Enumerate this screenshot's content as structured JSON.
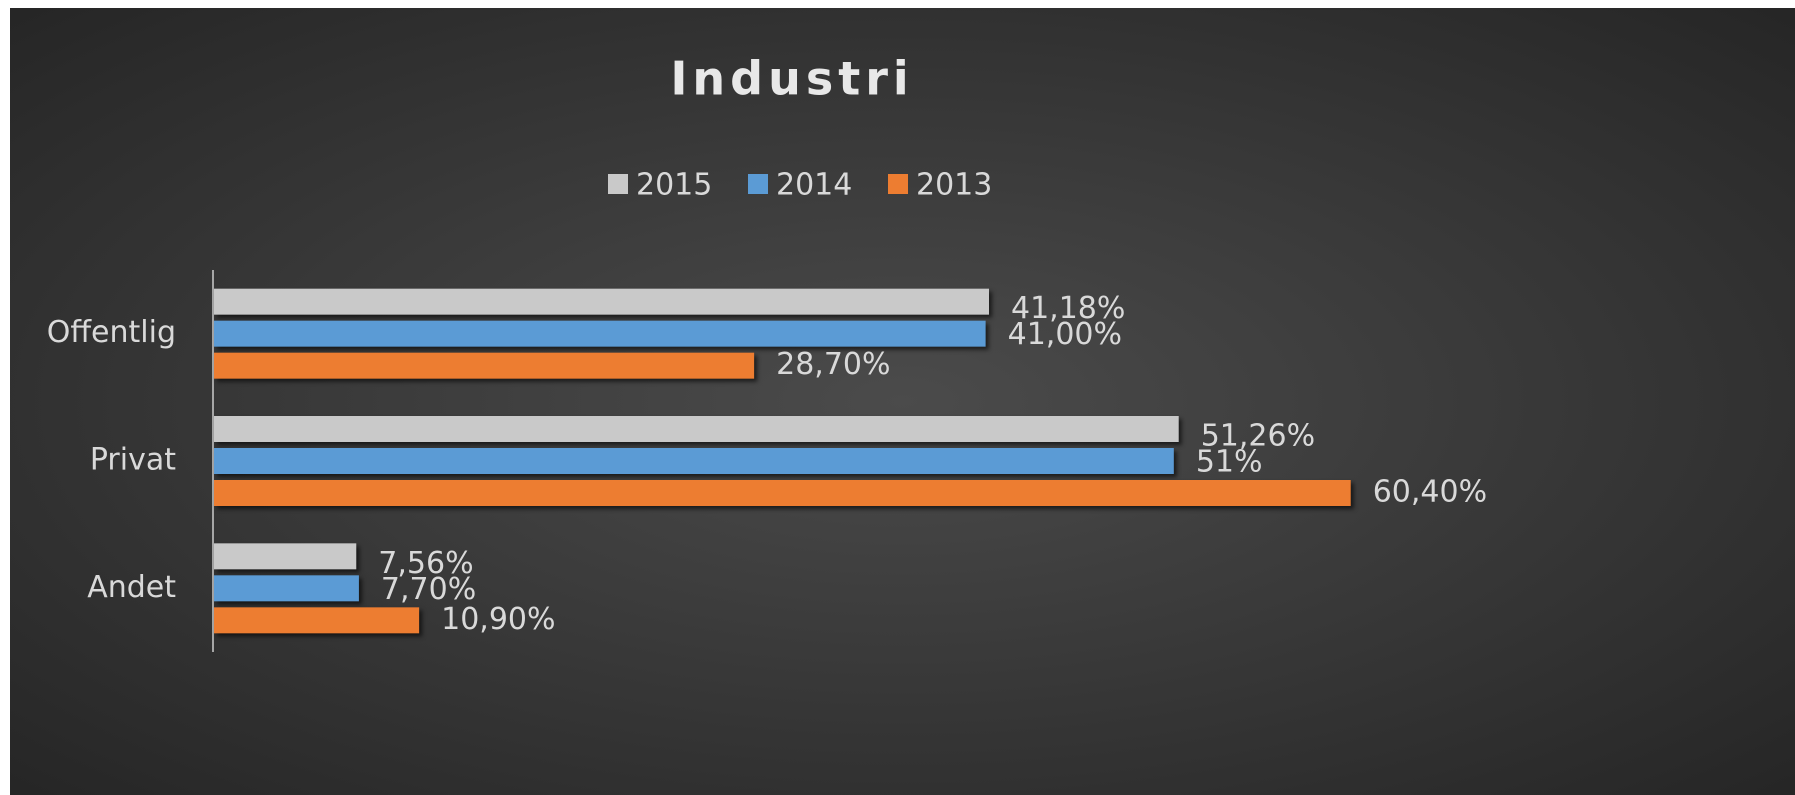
{
  "chart_data": {
    "type": "hbar",
    "title": "Industri",
    "categories": [
      "Offentlig",
      "Privat",
      "Andet"
    ],
    "series": [
      {
        "name": "2015",
        "color": "#c9c9c9",
        "values": [
          41.18,
          51.26,
          7.56
        ],
        "value_labels": [
          "41,18%",
          "51,26%",
          "7,56%"
        ]
      },
      {
        "name": "2014",
        "color": "#5b9bd5",
        "values": [
          41.0,
          51,
          7.7
        ],
        "value_labels": [
          "41,00%",
          "51%",
          "7,70%"
        ]
      },
      {
        "name": "2013",
        "color": "#ed7d31",
        "values": [
          28.7,
          60.4,
          10.9
        ],
        "value_labels": [
          "28,70%",
          "60,40%",
          "10,90%"
        ]
      }
    ],
    "xlim": [
      0,
      70
    ],
    "legend": "top"
  }
}
